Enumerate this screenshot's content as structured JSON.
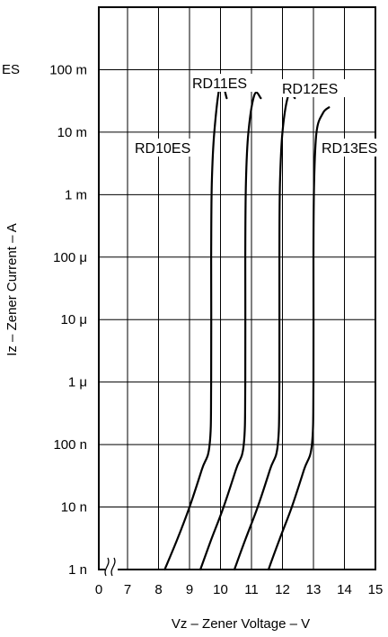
{
  "chart_data": {
    "type": "line",
    "xlabel": "Vz – Zener Voltage – V",
    "ylabel": "Iz – Zener Current – A",
    "x_ticks": [
      "0",
      "7",
      "8",
      "9",
      "10",
      "11",
      "12",
      "13",
      "14",
      "15"
    ],
    "x_tick_values": [
      6.35,
      7,
      8,
      9,
      10,
      11,
      12,
      13,
      14,
      15
    ],
    "xlim": [
      6.35,
      15
    ],
    "x_axis_break": true,
    "y_scale": "log",
    "y_ticks": [
      "1 n",
      "10 n",
      "100 n",
      "1 μ",
      "10 μ",
      "100 μ",
      "1 m",
      "10 m",
      "100 m"
    ],
    "y_tick_values": [
      1e-09,
      1e-08,
      1e-07,
      1e-06,
      1e-05,
      0.0001,
      0.001,
      0.01,
      0.1
    ],
    "ylim": [
      1e-09,
      1
    ],
    "grid": true,
    "series": [
      {
        "name": "RD10ES",
        "x": [
          8.2,
          8.6,
          9.0,
          9.4,
          9.65,
          9.7,
          9.7,
          9.72,
          9.8,
          10.0,
          10.2
        ],
        "y": [
          1e-09,
          3e-09,
          1e-08,
          4e-08,
          1e-07,
          1e-06,
          0.0001,
          0.0015,
          0.01,
          0.06,
          0.035
        ]
      },
      {
        "name": "RD11ES",
        "x": [
          9.35,
          9.7,
          10.1,
          10.5,
          10.75,
          10.8,
          10.8,
          10.82,
          10.9,
          11.1,
          11.3
        ],
        "y": [
          1e-09,
          3e-09,
          1e-08,
          4e-08,
          1e-07,
          1e-06,
          0.0001,
          0.0015,
          0.01,
          0.04,
          0.035
        ]
      },
      {
        "name": "RD12ES",
        "x": [
          10.45,
          10.8,
          11.2,
          11.6,
          11.85,
          11.9,
          11.9,
          11.92,
          12.0,
          12.2,
          12.4
        ],
        "y": [
          1e-09,
          3e-09,
          1e-08,
          4e-08,
          1e-07,
          1e-06,
          0.0001,
          0.0015,
          0.01,
          0.04,
          0.035
        ]
      },
      {
        "name": "RD13ES",
        "x": [
          11.55,
          11.9,
          12.3,
          12.7,
          12.95,
          13.0,
          13.0,
          13.02,
          13.1,
          13.3,
          13.5
        ],
        "y": [
          1e-09,
          3e-09,
          1e-08,
          4e-08,
          1e-07,
          1e-06,
          0.0001,
          0.0015,
          0.01,
          0.02,
          0.025
        ]
      }
    ],
    "clipped_left_label": "ES"
  }
}
